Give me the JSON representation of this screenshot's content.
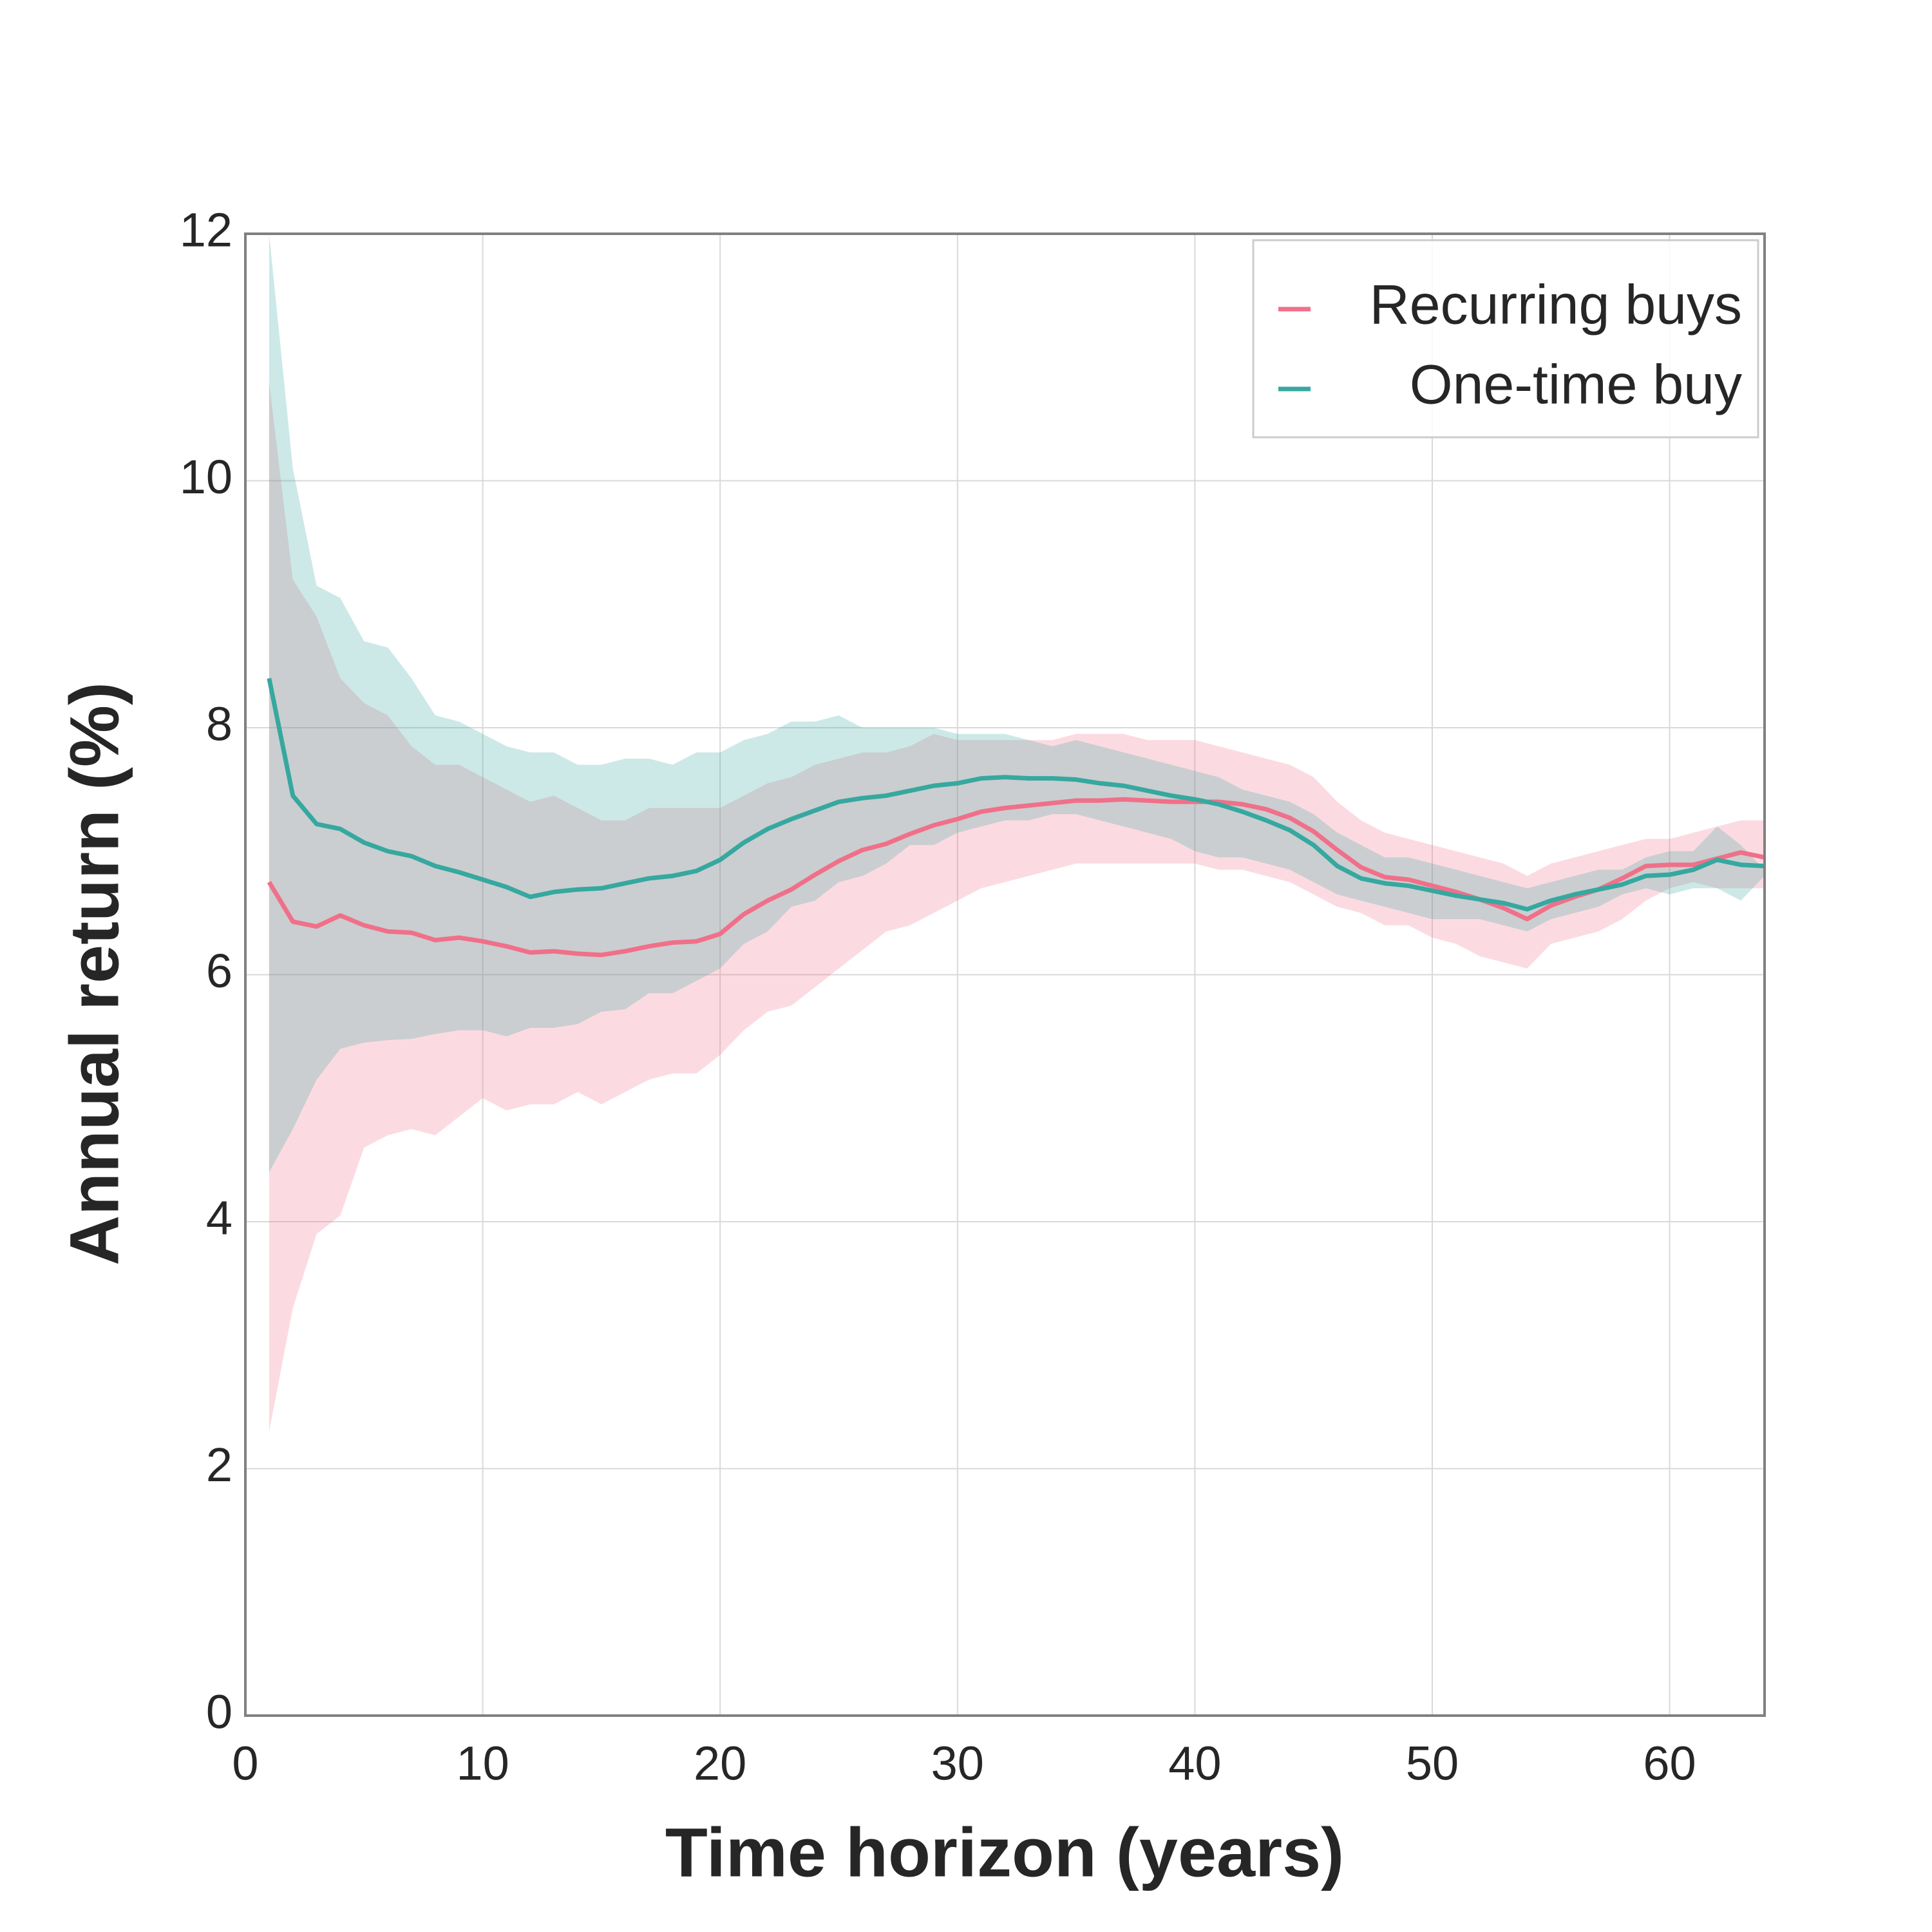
{
  "chart_data": {
    "type": "line",
    "xlabel": "Time horizon (years)",
    "ylabel": "Annual return (%)",
    "x": [
      1,
      2,
      3,
      4,
      5,
      6,
      7,
      8,
      9,
      10,
      11,
      12,
      13,
      14,
      15,
      16,
      17,
      18,
      19,
      20,
      21,
      22,
      23,
      24,
      25,
      26,
      27,
      28,
      29,
      30,
      31,
      32,
      33,
      34,
      35,
      36,
      37,
      38,
      39,
      40,
      41,
      42,
      43,
      44,
      45,
      46,
      47,
      48,
      49,
      50,
      51,
      52,
      53,
      54,
      55,
      56,
      57,
      58,
      59,
      60,
      61,
      62,
      63,
      64
    ],
    "xlim": [
      0,
      64
    ],
    "xticks": [
      0,
      10,
      20,
      30,
      40,
      50,
      60
    ],
    "ylim": [
      0,
      12
    ],
    "yticks": [
      0,
      2,
      4,
      6,
      8,
      10,
      12
    ],
    "grid": true,
    "legend": "upper right",
    "series": [
      {
        "name": "Recurring buys",
        "color": "#f07089",
        "values": [
          6.75,
          6.43,
          6.39,
          6.48,
          6.4,
          6.35,
          6.34,
          6.28,
          6.3,
          6.27,
          6.23,
          6.18,
          6.19,
          6.17,
          6.16,
          6.19,
          6.23,
          6.26,
          6.27,
          6.33,
          6.49,
          6.6,
          6.69,
          6.81,
          6.92,
          7.01,
          7.06,
          7.14,
          7.21,
          7.26,
          7.32,
          7.35,
          7.37,
          7.39,
          7.41,
          7.41,
          7.42,
          7.41,
          7.4,
          7.4,
          7.4,
          7.38,
          7.34,
          7.27,
          7.16,
          7.01,
          6.87,
          6.79,
          6.77,
          6.72,
          6.67,
          6.61,
          6.54,
          6.45,
          6.56,
          6.63,
          6.69,
          6.78,
          6.88,
          6.89,
          6.89,
          6.94,
          6.99,
          6.95
        ],
        "lower": [
          2.3,
          3.3,
          3.9,
          4.05,
          4.6,
          4.7,
          4.75,
          4.7,
          4.85,
          5.0,
          4.9,
          4.95,
          4.95,
          5.05,
          4.95,
          5.05,
          5.15,
          5.2,
          5.2,
          5.35,
          5.55,
          5.7,
          5.75,
          5.9,
          6.05,
          6.2,
          6.35,
          6.4,
          6.5,
          6.6,
          6.7,
          6.75,
          6.8,
          6.85,
          6.9,
          6.9,
          6.9,
          6.9,
          6.9,
          6.9,
          6.85,
          6.85,
          6.8,
          6.75,
          6.65,
          6.55,
          6.5,
          6.4,
          6.4,
          6.3,
          6.25,
          6.15,
          6.1,
          6.05,
          6.25,
          6.3,
          6.35,
          6.45,
          6.6,
          6.7,
          6.75,
          6.7,
          6.7,
          6.7
        ],
        "upper": [
          10.8,
          9.2,
          8.9,
          8.4,
          8.2,
          8.1,
          7.85,
          7.7,
          7.7,
          7.6,
          7.5,
          7.4,
          7.45,
          7.35,
          7.25,
          7.25,
          7.35,
          7.35,
          7.35,
          7.35,
          7.45,
          7.55,
          7.6,
          7.7,
          7.75,
          7.8,
          7.8,
          7.85,
          7.95,
          7.9,
          7.9,
          7.9,
          7.9,
          7.9,
          7.95,
          7.95,
          7.95,
          7.9,
          7.9,
          7.9,
          7.85,
          7.8,
          7.75,
          7.7,
          7.6,
          7.4,
          7.25,
          7.15,
          7.1,
          7.05,
          7.0,
          6.95,
          6.9,
          6.8,
          6.9,
          6.95,
          7.0,
          7.05,
          7.1,
          7.1,
          7.15,
          7.2,
          7.25,
          7.25
        ]
      },
      {
        "name": "One-time buy",
        "color": "#36a89f",
        "values": [
          8.4,
          7.45,
          7.22,
          7.18,
          7.07,
          7.0,
          6.96,
          6.88,
          6.83,
          6.77,
          6.71,
          6.63,
          6.67,
          6.69,
          6.7,
          6.74,
          6.78,
          6.8,
          6.84,
          6.93,
          7.07,
          7.18,
          7.26,
          7.33,
          7.4,
          7.43,
          7.45,
          7.49,
          7.53,
          7.55,
          7.59,
          7.6,
          7.59,
          7.59,
          7.58,
          7.55,
          7.53,
          7.49,
          7.45,
          7.42,
          7.38,
          7.32,
          7.25,
          7.17,
          7.05,
          6.88,
          6.78,
          6.74,
          6.72,
          6.68,
          6.64,
          6.61,
          6.58,
          6.53,
          6.6,
          6.65,
          6.69,
          6.73,
          6.8,
          6.81,
          6.85,
          6.93,
          6.89,
          6.88
        ],
        "lower": [
          4.4,
          4.75,
          5.15,
          5.4,
          5.45,
          5.47,
          5.48,
          5.52,
          5.55,
          5.55,
          5.5,
          5.57,
          5.57,
          5.6,
          5.7,
          5.72,
          5.85,
          5.85,
          5.95,
          6.05,
          6.25,
          6.35,
          6.55,
          6.6,
          6.75,
          6.8,
          6.9,
          7.05,
          7.05,
          7.15,
          7.2,
          7.25,
          7.25,
          7.3,
          7.3,
          7.25,
          7.2,
          7.15,
          7.1,
          7.0,
          6.95,
          6.95,
          6.9,
          6.85,
          6.75,
          6.65,
          6.6,
          6.55,
          6.5,
          6.45,
          6.45,
          6.45,
          6.4,
          6.35,
          6.45,
          6.5,
          6.55,
          6.65,
          6.7,
          6.65,
          6.7,
          6.7,
          6.6,
          6.8
        ],
        "upper": [
          12.0,
          10.1,
          9.15,
          9.05,
          8.7,
          8.65,
          8.4,
          8.1,
          8.05,
          7.95,
          7.85,
          7.8,
          7.8,
          7.7,
          7.7,
          7.75,
          7.75,
          7.7,
          7.8,
          7.8,
          7.9,
          7.95,
          8.05,
          8.05,
          8.1,
          8.0,
          8.0,
          8.0,
          8.0,
          7.95,
          7.95,
          7.95,
          7.9,
          7.85,
          7.9,
          7.85,
          7.8,
          7.75,
          7.7,
          7.65,
          7.6,
          7.5,
          7.45,
          7.4,
          7.3,
          7.15,
          7.05,
          6.95,
          6.95,
          6.9,
          6.85,
          6.8,
          6.75,
          6.7,
          6.75,
          6.8,
          6.85,
          6.85,
          6.95,
          7.0,
          7.0,
          7.2,
          7.05,
          6.85
        ]
      }
    ]
  }
}
